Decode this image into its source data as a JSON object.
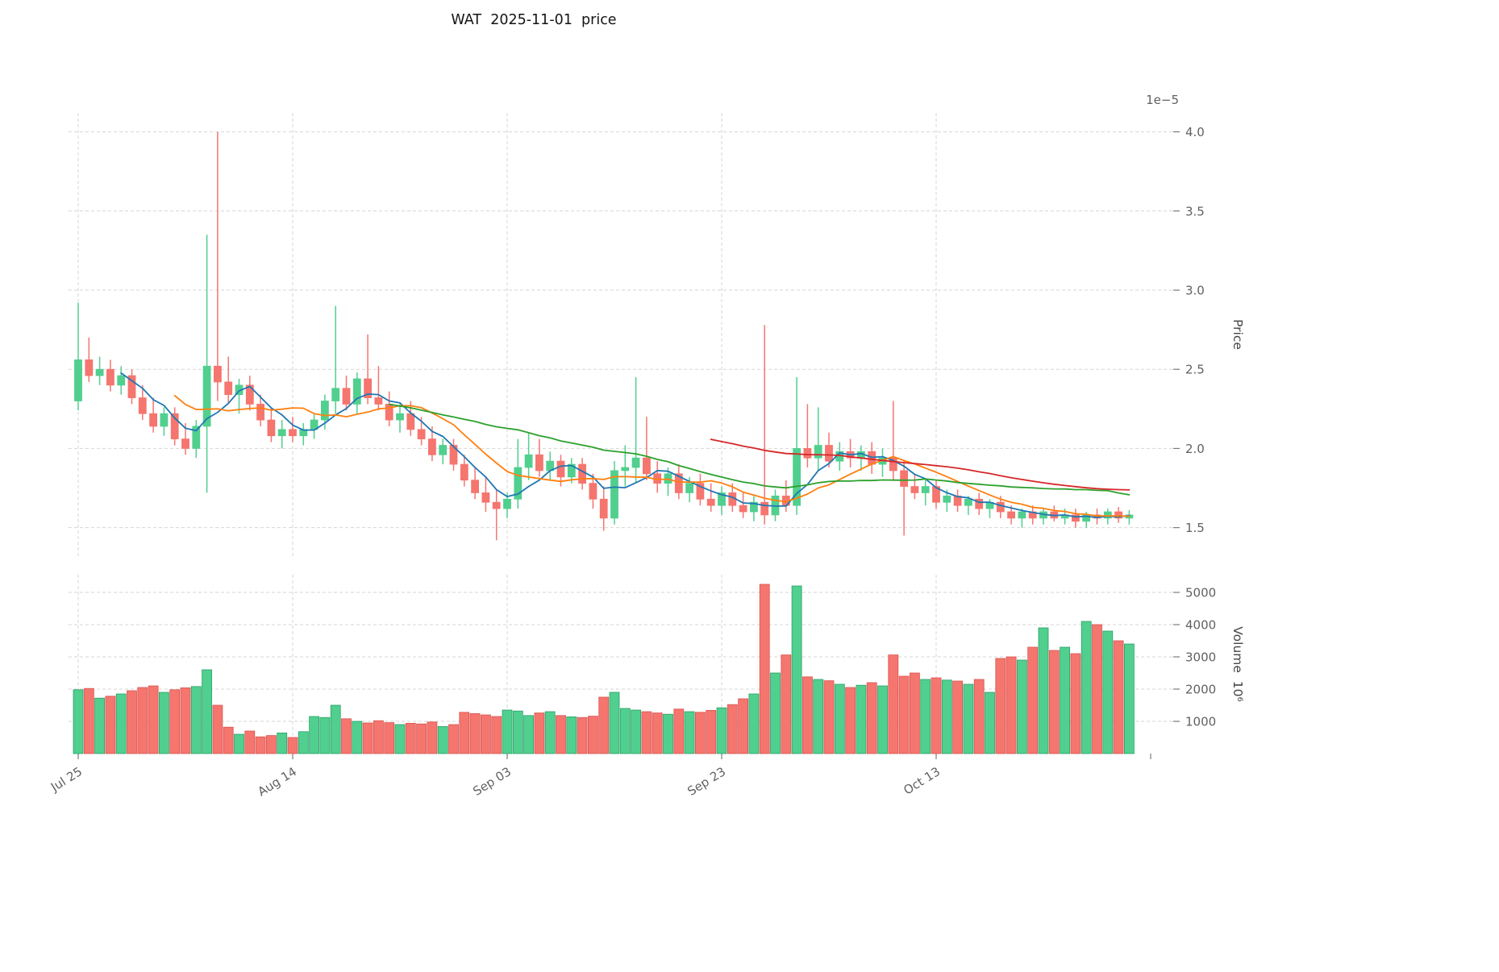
{
  "chart_data": {
    "type": "candlestick",
    "title": "WAT  2025-11-01  price",
    "legend": "none",
    "grid": true,
    "y_axis_position": "right",
    "price": {
      "ylabel": "Price",
      "offset_label": "1e−5",
      "ticks": [
        1.5,
        2.0,
        2.5,
        3.0,
        3.5,
        4.0
      ],
      "ylim": [
        1.32,
        4.12
      ],
      "open": [
        2.3,
        2.56,
        2.46,
        2.5,
        2.4,
        2.46,
        2.32,
        2.22,
        2.14,
        2.22,
        2.06,
        2.0,
        2.14,
        2.52,
        2.42,
        2.34,
        2.4,
        2.28,
        2.18,
        2.08,
        2.12,
        2.08,
        2.12,
        2.18,
        2.3,
        2.38,
        2.28,
        2.44,
        2.32,
        2.28,
        2.18,
        2.22,
        2.12,
        2.06,
        1.96,
        2.02,
        1.9,
        1.8,
        1.72,
        1.66,
        1.62,
        1.68,
        1.88,
        1.96,
        1.86,
        1.92,
        1.82,
        1.9,
        1.78,
        1.68,
        1.56,
        1.86,
        1.88,
        1.94,
        1.84,
        1.78,
        1.84,
        1.72,
        1.78,
        1.68,
        1.64,
        1.72,
        1.64,
        1.6,
        1.66,
        1.58,
        1.7,
        1.64,
        2.0,
        1.94,
        2.02,
        1.92,
        1.98,
        1.94,
        1.98,
        1.9,
        1.94,
        1.86,
        1.76,
        1.72,
        1.76,
        1.66,
        1.7,
        1.64,
        1.68,
        1.62,
        1.66,
        1.6,
        1.56,
        1.6,
        1.56,
        1.6,
        1.56,
        1.58,
        1.54,
        1.58,
        1.56,
        1.6,
        1.56
      ],
      "high": [
        2.92,
        2.7,
        2.58,
        2.56,
        2.52,
        2.5,
        2.4,
        2.32,
        2.26,
        2.26,
        2.16,
        2.18,
        3.35,
        4.0,
        2.58,
        2.44,
        2.46,
        2.34,
        2.26,
        2.18,
        2.2,
        2.16,
        2.22,
        2.34,
        2.9,
        2.46,
        2.48,
        2.72,
        2.52,
        2.36,
        2.28,
        2.3,
        2.2,
        2.14,
        2.06,
        2.06,
        1.96,
        1.88,
        1.82,
        1.74,
        1.72,
        2.06,
        2.1,
        2.06,
        1.98,
        1.96,
        1.94,
        1.94,
        1.84,
        1.76,
        1.92,
        2.02,
        2.45,
        2.2,
        1.92,
        1.88,
        1.9,
        1.82,
        1.84,
        1.78,
        1.76,
        1.78,
        1.72,
        1.7,
        2.78,
        1.74,
        1.8,
        2.45,
        2.28,
        2.26,
        2.1,
        2.04,
        2.06,
        2.02,
        2.04,
        2.0,
        2.3,
        1.92,
        1.84,
        1.8,
        1.8,
        1.74,
        1.74,
        1.7,
        1.72,
        1.68,
        1.7,
        1.64,
        1.62,
        1.64,
        1.62,
        1.64,
        1.62,
        1.62,
        1.6,
        1.62,
        1.62,
        1.63,
        1.61
      ],
      "low": [
        2.24,
        2.42,
        2.4,
        2.36,
        2.34,
        2.28,
        2.18,
        2.1,
        2.08,
        2.02,
        1.96,
        1.94,
        1.72,
        2.3,
        2.28,
        2.22,
        2.24,
        2.14,
        2.04,
        2.0,
        2.04,
        2.02,
        2.06,
        2.12,
        2.22,
        2.24,
        2.22,
        2.28,
        2.24,
        2.14,
        2.1,
        2.08,
        2.02,
        1.92,
        1.9,
        1.86,
        1.76,
        1.68,
        1.6,
        1.42,
        1.56,
        1.62,
        1.8,
        1.82,
        1.8,
        1.76,
        1.78,
        1.74,
        1.62,
        1.48,
        1.52,
        1.76,
        1.78,
        1.8,
        1.72,
        1.7,
        1.68,
        1.66,
        1.64,
        1.6,
        1.58,
        1.6,
        1.56,
        1.54,
        1.52,
        1.54,
        1.6,
        1.58,
        1.88,
        1.86,
        1.88,
        1.86,
        1.88,
        1.86,
        1.84,
        1.82,
        1.8,
        1.45,
        1.68,
        1.64,
        1.62,
        1.6,
        1.6,
        1.58,
        1.58,
        1.56,
        1.56,
        1.52,
        1.5,
        1.52,
        1.52,
        1.54,
        1.52,
        1.5,
        1.5,
        1.52,
        1.52,
        1.53,
        1.52
      ],
      "close": [
        2.56,
        2.46,
        2.5,
        2.4,
        2.46,
        2.32,
        2.22,
        2.14,
        2.22,
        2.06,
        2.0,
        2.14,
        2.52,
        2.42,
        2.34,
        2.4,
        2.28,
        2.18,
        2.08,
        2.12,
        2.08,
        2.12,
        2.18,
        2.3,
        2.38,
        2.28,
        2.44,
        2.32,
        2.28,
        2.18,
        2.22,
        2.12,
        2.06,
        1.96,
        2.02,
        1.9,
        1.8,
        1.72,
        1.66,
        1.62,
        1.68,
        1.88,
        1.96,
        1.86,
        1.92,
        1.82,
        1.9,
        1.78,
        1.68,
        1.56,
        1.86,
        1.88,
        1.94,
        1.84,
        1.78,
        1.84,
        1.72,
        1.78,
        1.68,
        1.64,
        1.72,
        1.64,
        1.6,
        1.66,
        1.58,
        1.7,
        1.64,
        2.0,
        1.94,
        2.02,
        1.92,
        1.98,
        1.94,
        1.98,
        1.9,
        1.94,
        1.86,
        1.76,
        1.72,
        1.76,
        1.66,
        1.7,
        1.64,
        1.68,
        1.62,
        1.66,
        1.6,
        1.56,
        1.6,
        1.56,
        1.6,
        1.56,
        1.58,
        1.54,
        1.58,
        1.56,
        1.6,
        1.56,
        1.58
      ]
    },
    "volume": {
      "ylabel": "Volume  10⁶",
      "ticks": [
        1000,
        2000,
        3000,
        4000,
        5000
      ],
      "ylim": [
        0,
        5550
      ],
      "values": [
        1980,
        2020,
        1720,
        1780,
        1850,
        1950,
        2050,
        2100,
        1900,
        1980,
        2040,
        2080,
        2600,
        1500,
        820,
        600,
        700,
        520,
        560,
        640,
        500,
        680,
        1150,
        1120,
        1500,
        1080,
        1000,
        950,
        1020,
        960,
        900,
        940,
        920,
        980,
        840,
        900,
        1280,
        1240,
        1200,
        1150,
        1350,
        1320,
        1180,
        1260,
        1300,
        1180,
        1140,
        1120,
        1160,
        1750,
        1900,
        1400,
        1350,
        1300,
        1260,
        1220,
        1380,
        1300,
        1280,
        1340,
        1420,
        1520,
        1700,
        1850,
        5250,
        2500,
        3060,
        5200,
        2380,
        2300,
        2260,
        2150,
        2050,
        2120,
        2200,
        2100,
        3060,
        2400,
        2500,
        2300,
        2350,
        2280,
        2250,
        2150,
        2300,
        1900,
        2950,
        3000,
        2900,
        3300,
        3900,
        3200,
        3300,
        3100,
        4100,
        4000,
        3800,
        3500,
        3400
      ]
    },
    "x_ticks": [
      {
        "i": 0,
        "label": "Jul 25"
      },
      {
        "i": 20,
        "label": "Aug 14"
      },
      {
        "i": 40,
        "label": "Sep 03"
      },
      {
        "i": 60,
        "label": "Sep 23"
      },
      {
        "i": 80,
        "label": "Oct 13"
      },
      {
        "i": 100,
        "label": ""
      }
    ],
    "moving_averages": [
      {
        "name": "ma-5-line",
        "window": 5,
        "color": "#1f77b4"
      },
      {
        "name": "ma-10-line",
        "window": 10,
        "color": "#ff7f0e"
      },
      {
        "name": "ma-30-line",
        "window": 30,
        "color": "#2ca02c"
      },
      {
        "name": "ma-60-line",
        "window": 60,
        "color": "#d62728"
      }
    ],
    "colors": {
      "up": "#51cf8e",
      "up_edge": "#2aa06a",
      "down": "#f5756f",
      "down_edge": "#d9544f",
      "grid": "#d6d6d6",
      "tick_label": "#616161",
      "title": "#141414"
    }
  }
}
